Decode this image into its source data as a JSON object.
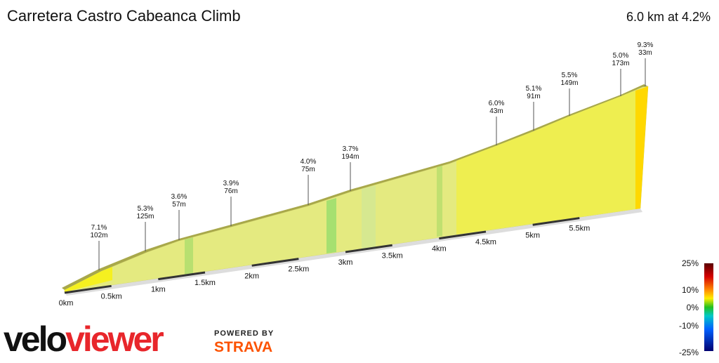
{
  "title": "Carretera Castro Cabeanca Climb",
  "summary": "6.0 km at 4.2%",
  "segments": [
    {
      "grade": "7.1%",
      "length": "102m"
    },
    {
      "grade": "5.3%",
      "length": "125m"
    },
    {
      "grade": "3.6%",
      "length": "57m"
    },
    {
      "grade": "3.9%",
      "length": "76m"
    },
    {
      "grade": "4.0%",
      "length": "75m"
    },
    {
      "grade": "3.7%",
      "length": "194m"
    },
    {
      "grade": "6.0%",
      "length": "43m"
    },
    {
      "grade": "5.1%",
      "length": "91m"
    },
    {
      "grade": "5.5%",
      "length": "149m"
    },
    {
      "grade": "5.0%",
      "length": "173m"
    },
    {
      "grade": "9.3%",
      "length": "33m"
    }
  ],
  "distance_ticks": [
    "0km",
    "0.5km",
    "1km",
    "1.5km",
    "2km",
    "2.5km",
    "3km",
    "3.5km",
    "4km",
    "4.5km",
    "5km",
    "5.5km"
  ],
  "legend": {
    "ticks": [
      "25%",
      "10%",
      "0%",
      "-10%",
      "-25%"
    ]
  },
  "brand": {
    "velo": "velo",
    "viewer": "viewer",
    "powered_by": "POWERED BY",
    "strava": "STRAVA"
  }
}
